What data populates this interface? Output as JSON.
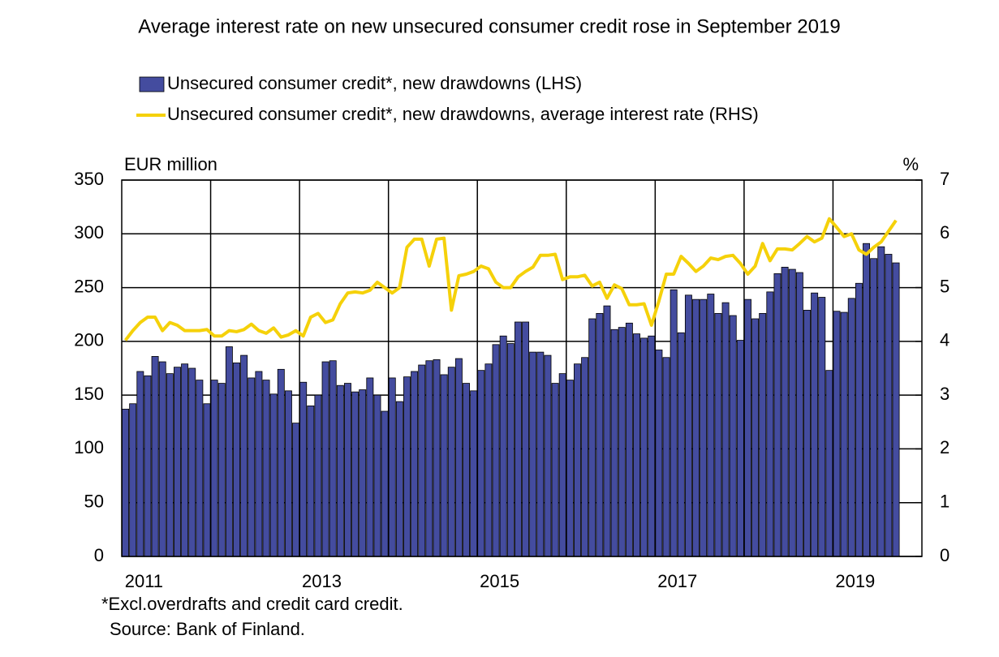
{
  "chart_data": {
    "type": "bar",
    "title": "Average interest rate on new unsecured consumer credit rose in September 2019",
    "y_label": "EUR million",
    "y2_label": "%",
    "footnotes": [
      "*Excl.overdrafts and credit card credit.",
      "Source: Bank of Finland."
    ],
    "categories": [
      "2011",
      null,
      null,
      null,
      null,
      null,
      null,
      null,
      null,
      null,
      null,
      null,
      null,
      null,
      null,
      null,
      null,
      null,
      null,
      null,
      null,
      null,
      null,
      null,
      "2013",
      null,
      null,
      null,
      null,
      null,
      null,
      null,
      null,
      null,
      null,
      null,
      null,
      null,
      null,
      null,
      null,
      null,
      null,
      null,
      null,
      null,
      null,
      null,
      "2015",
      null,
      null,
      null,
      null,
      null,
      null,
      null,
      null,
      null,
      null,
      null,
      null,
      null,
      null,
      null,
      null,
      null,
      null,
      null,
      null,
      null,
      null,
      null,
      "2017",
      null,
      null,
      null,
      null,
      null,
      null,
      null,
      null,
      null,
      null,
      null,
      null,
      null,
      null,
      null,
      null,
      null,
      null,
      null,
      null,
      null,
      null,
      null,
      "2019",
      null,
      null,
      null,
      null,
      null,
      null,
      null,
      null
    ],
    "series": [
      {
        "name": "Unsecured consumer credit*, new drawdowns (LHS)",
        "type": "bar",
        "color": "#444c9f",
        "values": [
          137,
          142,
          172,
          168,
          186,
          181,
          170,
          176,
          179,
          175,
          164,
          142,
          164,
          161,
          195,
          180,
          187,
          166,
          172,
          164,
          151,
          174,
          154,
          124,
          162,
          140,
          150,
          181,
          182,
          159,
          161,
          153,
          155,
          166,
          150,
          135,
          166,
          144,
          167,
          172,
          178,
          182,
          183,
          169,
          176,
          184,
          161,
          154,
          173,
          179,
          197,
          205,
          198,
          218,
          218,
          190,
          190,
          187,
          161,
          170,
          164,
          179,
          185,
          221,
          226,
          233,
          211,
          213,
          217,
          207,
          203,
          205,
          192,
          185,
          248,
          208,
          243,
          239,
          239,
          244,
          226,
          236,
          224,
          201,
          239,
          221,
          226,
          246,
          263,
          269,
          267,
          264,
          229,
          245,
          241,
          173,
          228,
          227,
          240,
          254,
          291,
          277,
          288,
          281,
          273
        ]
      },
      {
        "name": "Unsecured consumer credit*, new drawdowns, average interest rate (RHS)",
        "type": "line",
        "axis": "y2",
        "color": "#f5d10a",
        "values": [
          4.02,
          4.2,
          4.35,
          4.45,
          4.45,
          4.2,
          4.35,
          4.3,
          4.2,
          4.2,
          4.2,
          4.22,
          4.1,
          4.1,
          4.2,
          4.18,
          4.22,
          4.32,
          4.2,
          4.15,
          4.25,
          4.08,
          4.12,
          4.2,
          4.1,
          4.45,
          4.52,
          4.35,
          4.4,
          4.7,
          4.9,
          4.92,
          4.9,
          4.95,
          5.1,
          5.0,
          4.9,
          5.0,
          5.75,
          5.9,
          5.9,
          5.4,
          5.9,
          5.92,
          4.58,
          5.22,
          5.25,
          5.3,
          5.4,
          5.35,
          5.1,
          5.0,
          5.0,
          5.2,
          5.3,
          5.38,
          5.6,
          5.6,
          5.62,
          5.15,
          5.2,
          5.2,
          5.23,
          5.03,
          5.1,
          4.8,
          5.05,
          4.98,
          4.68,
          4.68,
          4.7,
          4.3,
          4.75,
          5.25,
          5.25,
          5.58,
          5.45,
          5.3,
          5.4,
          5.55,
          5.52,
          5.58,
          5.6,
          5.45,
          5.25,
          5.4,
          5.82,
          5.5,
          5.72,
          5.72,
          5.7,
          5.82,
          5.95,
          5.85,
          5.92,
          6.28,
          6.12,
          5.95,
          6.0,
          5.7,
          5.62,
          5.75,
          5.85,
          6.05,
          6.25
        ]
      }
    ],
    "ylim": [
      0,
      350
    ],
    "yticks": [
      0,
      50,
      100,
      150,
      200,
      250,
      300,
      350
    ],
    "y2lim": [
      0,
      7
    ],
    "y2ticks": [
      0,
      1,
      2,
      3,
      4,
      5,
      6,
      7
    ],
    "grid": true
  }
}
